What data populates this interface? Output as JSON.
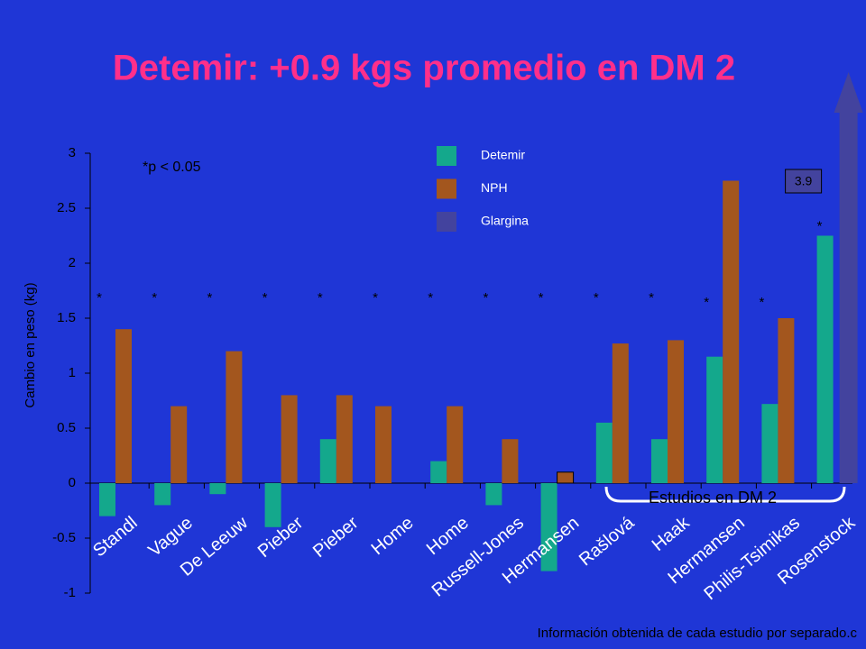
{
  "chart_data": {
    "type": "bar",
    "title": "Detemir: +0.9 kgs promedio en DM 2",
    "y_label": "Cambio en peso (kg)",
    "note": "*p < 0.05",
    "bracket_label": "Estudios en DM 2",
    "footer": "Información obtenida de cada estudio por separado.c",
    "categories": [
      "Standl",
      "Vague",
      "De Leeuw",
      "Pieber",
      "Pieber",
      "Home",
      "Home",
      "Russell-Jones",
      "Hermansen",
      "Rašlová",
      "Haak",
      "Hermansen",
      "Philis-Tsimikas",
      "Rosenstock"
    ],
    "significance": [
      "*",
      "*",
      "*",
      "*",
      "*",
      "*",
      "*",
      "*",
      "*",
      "*",
      "*",
      "*",
      "*",
      "*"
    ],
    "series": [
      {
        "name": "Detemir",
        "color": "#14a88c",
        "values": [
          -0.3,
          -0.2,
          -0.1,
          -0.4,
          0.4,
          null,
          0.2,
          -0.2,
          -0.8,
          0.55,
          0.4,
          1.15,
          0.72,
          2.25
        ]
      },
      {
        "name": "NPH",
        "color": "#a3561e",
        "values": [
          1.4,
          0.7,
          1.2,
          0.8,
          0.8,
          0.7,
          0.7,
          0.4,
          0.1,
          1.27,
          1.3,
          2.75,
          1.5,
          null
        ]
      },
      {
        "name": "Glargina",
        "color": "#43439e",
        "values": [
          null,
          null,
          null,
          null,
          null,
          null,
          null,
          null,
          null,
          null,
          null,
          null,
          null,
          3.9
        ],
        "value_labels": [
          null,
          null,
          null,
          null,
          null,
          null,
          null,
          null,
          null,
          null,
          null,
          null,
          null,
          "3.9"
        ]
      }
    ],
    "ylim": [
      -1,
      3
    ],
    "yticks": [
      -1,
      -0.5,
      0,
      0.5,
      1,
      1.5,
      2,
      2.5,
      3
    ]
  }
}
